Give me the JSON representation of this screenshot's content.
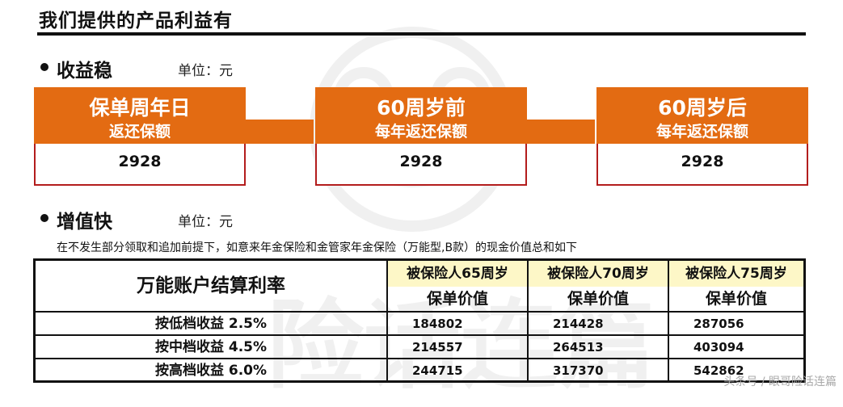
{
  "title": "我们提供的产品利益有",
  "section1": {
    "title": "收益稳",
    "unit": "单位：元"
  },
  "cards": [
    {
      "line1": "保单周年日",
      "line2": "返还保额",
      "value": "2928"
    },
    {
      "line1": "60周岁前",
      "line2": "每年返还保额",
      "value": "2928"
    },
    {
      "line1": "60周岁后",
      "line2": "每年返还保额",
      "value": "2928"
    }
  ],
  "section2": {
    "title": "增值快",
    "unit": "单位：元"
  },
  "note": "在不发生部分领取和追加前提下，如意来年金保险和金管家年金保险（万能型,B款）的现金价值总和如下",
  "table": {
    "corner": "万能账户结算利率",
    "columns": [
      {
        "age": "被保险人65周岁",
        "sub": "保单价值"
      },
      {
        "age": "被保险人70周岁",
        "sub": "保单价值"
      },
      {
        "age": "被保险人75周岁",
        "sub": "保单价值"
      }
    ],
    "rows": [
      {
        "label": "按低档收益 2.5%",
        "values": [
          "184802",
          "214428",
          "287056"
        ]
      },
      {
        "label": "按中档收益 4.5%",
        "values": [
          "214557",
          "264513",
          "403094"
        ]
      },
      {
        "label": "按高档收益 6.0%",
        "values": [
          "244715",
          "317370",
          "542862"
        ]
      }
    ]
  },
  "credit": "头条号 / 眼哥险话连篇"
}
